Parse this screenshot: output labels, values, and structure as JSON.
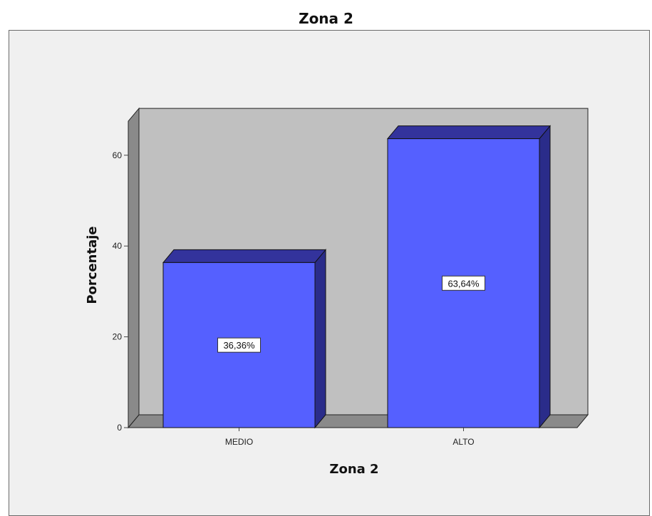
{
  "chart_data": {
    "type": "bar",
    "title": "Zona 2",
    "xlabel": "Zona 2",
    "ylabel": "Porcentaje",
    "categories": [
      "MEDIO",
      "ALTO"
    ],
    "values": [
      36.36,
      63.64
    ],
    "data_labels": [
      "36,36%",
      "63,64%"
    ],
    "ylim": [
      0,
      70
    ],
    "yticks": [
      0,
      20,
      40,
      60
    ],
    "grid": false,
    "legend": "none",
    "style": "3d"
  },
  "colors": {
    "bar_front": "#5560ff",
    "bar_top": "#33339c",
    "bar_side": "#2a2c8a",
    "wall": "#c0c0c0",
    "floor": "#8a8a8a",
    "chart_background": "#f0f0f0",
    "label_box": "#ffffff"
  }
}
